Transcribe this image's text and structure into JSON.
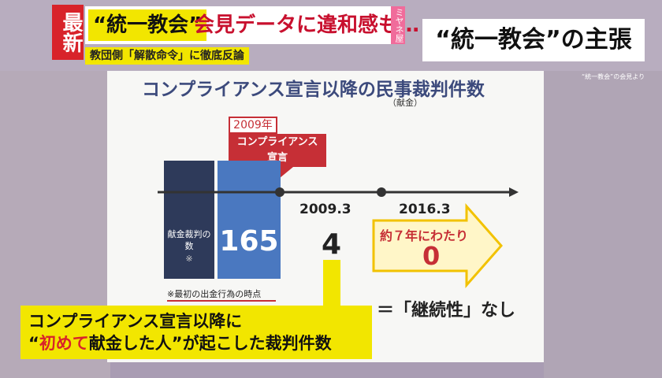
{
  "header": {
    "badge": "最新",
    "headline_tag": "“統一教会”",
    "headline": "会見データに違和感も…",
    "program": "ミヤネ屋",
    "subheadline": "教団側「解散命令」に徹底反論",
    "topic": "“統一教会”の主張",
    "credit": "“統一教会”の会見より"
  },
  "slide": {
    "title": "コンプライアンス宣言以降の民事裁判件数",
    "subtitle": "（献金）",
    "callout": {
      "year": "2009年",
      "label": "コンプライアンス宣言"
    },
    "dark_bar_label": "献金裁判の数",
    "dark_bar_note": "※",
    "blue_bar_value": 165,
    "footnote": "※最初の出金行為の時点",
    "date1": "2009.3",
    "value1": 4,
    "date2": "2016.3",
    "arrow_label": "約７年にわたり",
    "value2": 0,
    "conclusion": "＝「継続性」なし"
  },
  "caption": {
    "line1": "コンプライアンス宣言以降に",
    "line2_a": "“",
    "line2_highlight": "初めて",
    "line2_b": "献金した人”が起こした裁判件数"
  }
}
